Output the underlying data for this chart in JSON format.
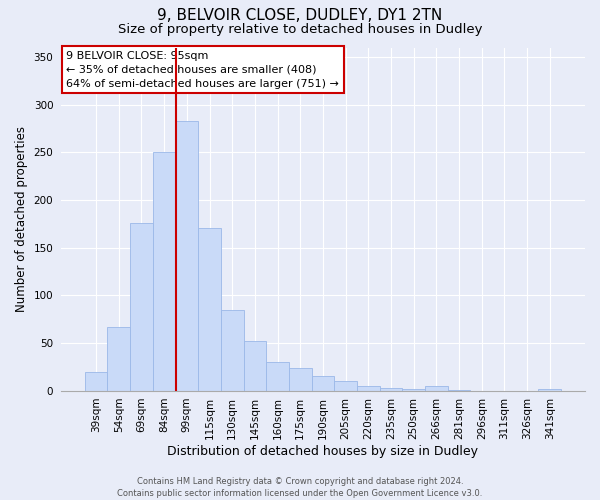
{
  "title": "9, BELVOIR CLOSE, DUDLEY, DY1 2TN",
  "subtitle": "Size of property relative to detached houses in Dudley",
  "xlabel": "Distribution of detached houses by size in Dudley",
  "ylabel": "Number of detached properties",
  "bar_labels": [
    "39sqm",
    "54sqm",
    "69sqm",
    "84sqm",
    "99sqm",
    "115sqm",
    "130sqm",
    "145sqm",
    "160sqm",
    "175sqm",
    "190sqm",
    "205sqm",
    "220sqm",
    "235sqm",
    "250sqm",
    "266sqm",
    "281sqm",
    "296sqm",
    "311sqm",
    "326sqm",
    "341sqm"
  ],
  "bar_values": [
    20,
    67,
    176,
    250,
    283,
    171,
    85,
    52,
    30,
    24,
    15,
    10,
    5,
    3,
    2,
    5,
    1,
    0,
    0,
    0,
    2
  ],
  "bar_color": "#c9daf8",
  "bar_edgecolor": "#9bb8e8",
  "vline_color": "#cc0000",
  "vline_index": 4,
  "ylim": [
    0,
    360
  ],
  "yticks": [
    0,
    50,
    100,
    150,
    200,
    250,
    300,
    350
  ],
  "annotation_box_text": "9 BELVOIR CLOSE: 95sqm\n← 35% of detached houses are smaller (408)\n64% of semi-detached houses are larger (751) →",
  "annotation_box_edgecolor": "#cc0000",
  "annotation_box_facecolor": "#ffffff",
  "footer_line1": "Contains HM Land Registry data © Crown copyright and database right 2024.",
  "footer_line2": "Contains public sector information licensed under the Open Government Licence v3.0.",
  "background_color": "#e8ecf8",
  "grid_color": "#ffffff",
  "title_fontsize": 11,
  "subtitle_fontsize": 9.5,
  "xlabel_fontsize": 9,
  "ylabel_fontsize": 8.5,
  "tick_fontsize": 7.5,
  "annot_fontsize": 8,
  "footer_fontsize": 6
}
